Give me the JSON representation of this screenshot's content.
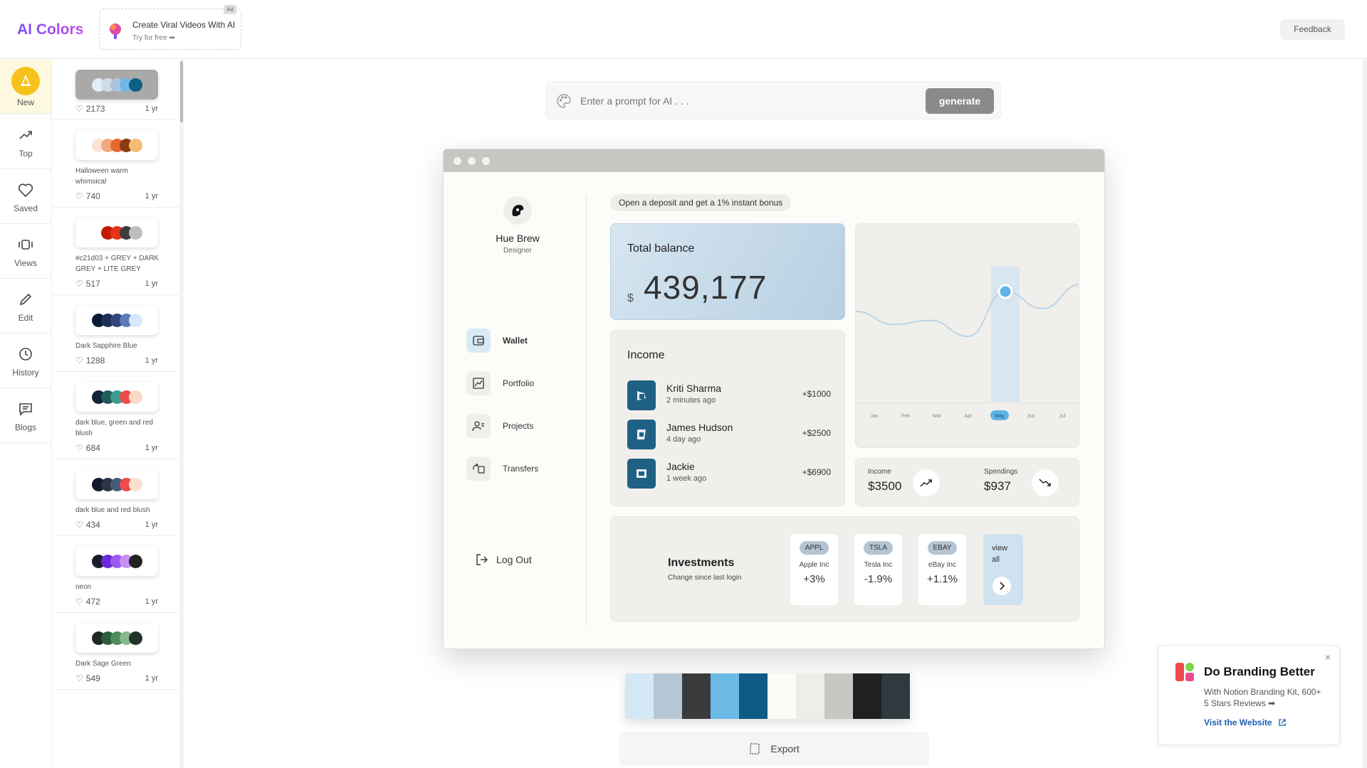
{
  "app": {
    "logo": "AI Colors",
    "feedback_label": "Feedback"
  },
  "top_ad": {
    "title": "Create Viral Videos With AI",
    "subtitle": "Try for free ➡",
    "tag": "Ad"
  },
  "nav": [
    {
      "label": "New",
      "icon": "cone-icon",
      "active": true
    },
    {
      "label": "Top",
      "icon": "trending-up-icon"
    },
    {
      "label": "Saved",
      "icon": "heart-icon"
    },
    {
      "label": "Views",
      "icon": "views-icon"
    },
    {
      "label": "Edit",
      "icon": "pencil-icon"
    },
    {
      "label": "History",
      "icon": "history-icon"
    },
    {
      "label": "Blogs",
      "icon": "chat-icon"
    }
  ],
  "palettes": [
    {
      "name": "",
      "likes": "2173",
      "age": "1 yr",
      "selected": true,
      "colors": [
        "#e3edf6",
        "#cfdbe6",
        "#a9c5dd",
        "#6fb8e8",
        "#0d5f86"
      ]
    },
    {
      "name": "Halloween warm whimsical",
      "likes": "740",
      "age": "1 yr",
      "colors": [
        "#fbe2d3",
        "#f3a77b",
        "#e4672e",
        "#8a3b12",
        "#f4bc74"
      ]
    },
    {
      "name": "#c21d03 + GREY + DARK GREY + LITE GREY",
      "likes": "517",
      "age": "1 yr",
      "colors": [
        "#ffffff",
        "#c21d03",
        "#e3331b",
        "#3d3d3d",
        "#bdbdbd"
      ]
    },
    {
      "name": "Dark Sapphire Blue",
      "likes": "1288",
      "age": "1 yr",
      "colors": [
        "#0b1a33",
        "#1c2e55",
        "#34467a",
        "#5b7bb8",
        "#d8e7fb"
      ]
    },
    {
      "name": "dark blue, green and red blush",
      "likes": "684",
      "age": "1 yr",
      "colors": [
        "#13233a",
        "#1e5b5a",
        "#3a9b8e",
        "#f04a4a",
        "#fbd9c7"
      ]
    },
    {
      "name": "dark blue and red blush",
      "likes": "434",
      "age": "1 yr",
      "colors": [
        "#121a2b",
        "#2b3546",
        "#465a7a",
        "#f04b4b",
        "#fbdfd0"
      ]
    },
    {
      "name": "neon",
      "likes": "472",
      "age": "1 yr",
      "colors": [
        "#1b1b2e",
        "#6a2ad8",
        "#9b5bf0",
        "#c890f5",
        "#222222"
      ]
    },
    {
      "name": "Dark Sage Green",
      "likes": "549",
      "age": "1 yr",
      "colors": [
        "#1f2a22",
        "#2d5d3a",
        "#4c8c59",
        "#86b98e",
        "#24332a"
      ]
    }
  ],
  "prompt": {
    "placeholder": "Enter a prompt for AI . . .",
    "button": "generate"
  },
  "preview": {
    "profile": {
      "name": "Hue Brew",
      "role": "Designer"
    },
    "menu": [
      "Wallet",
      "Portfolio",
      "Projects",
      "Transfers"
    ],
    "logout": "Log Out",
    "promo": "Open a deposit and get a 1% instant bonus",
    "balance": {
      "title": "Total balance",
      "currency": "$",
      "value": "439,177"
    },
    "income": {
      "title": "Income",
      "transactions": [
        {
          "name": "Kriti Sharma",
          "time": "2 minutes ago",
          "amount": "+$1000"
        },
        {
          "name": "James Hudson",
          "time": "4 day ago",
          "amount": "+$2500"
        },
        {
          "name": "Jackie",
          "time": "1 week ago",
          "amount": "+$6900"
        }
      ]
    },
    "chart_data": {
      "type": "line",
      "categories": [
        "Jan",
        "Feb",
        "Mar",
        "Apr",
        "May",
        "Jun",
        "Jul"
      ],
      "highlight": "May",
      "values": [
        55,
        42,
        46,
        30,
        75,
        58,
        82
      ]
    },
    "stats": {
      "income_label": "Income",
      "income_value": "$3500",
      "spend_label": "Spendings",
      "spend_value": "$937"
    },
    "investments": {
      "title": "Investments",
      "subtitle": "Change since last login",
      "stocks": [
        {
          "ticker": "APPL",
          "name": "Apple Inc",
          "change": "+3%"
        },
        {
          "ticker": "TSLA",
          "name": "Tesla Inc",
          "change": "-1.9%"
        },
        {
          "ticker": "EBAY",
          "name": "eBay Inc",
          "change": "+1.1%"
        }
      ],
      "view_all": "view all"
    }
  },
  "strip_colors": [
    "#d4e7f5",
    "#b5c7d4",
    "#3a3b3d",
    "#6bbbe6",
    "#0f5b85",
    "#fbfbf7",
    "#ededea",
    "#c8c7c3",
    "#202020",
    "#2e3940"
  ],
  "export_label": "Export",
  "brand_ad": {
    "title": "Do Branding Better",
    "desc": "With Notion Branding Kit, 600+ 5 Stars Reviews ➡",
    "link": "Visit the Website",
    "close": "×"
  }
}
